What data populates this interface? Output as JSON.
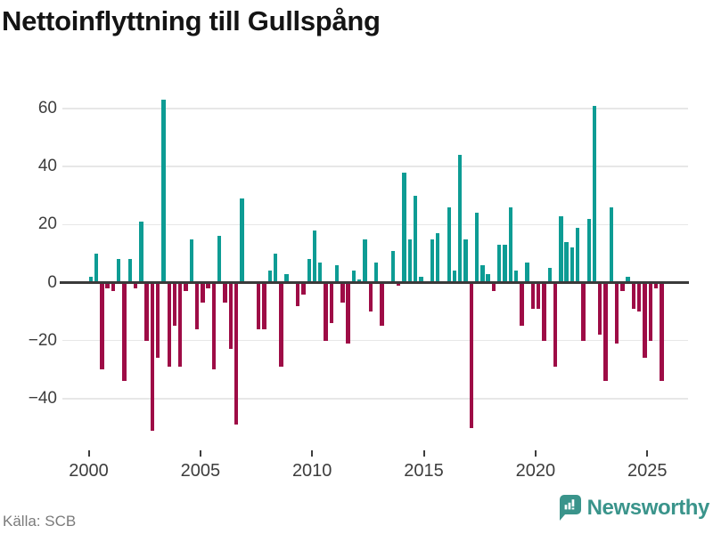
{
  "header": {
    "title": "Nettoinflyttning till Gullspång"
  },
  "footer": {
    "source": "Källa: SCB",
    "brand": "Newsworthy"
  },
  "colors": {
    "positive": "#0d9c94",
    "negative": "#9e0c46",
    "axis": "#3a3a3a",
    "grid": "#e7e7e7",
    "brand_teal": "#3a948b"
  },
  "chart_data": {
    "type": "bar",
    "title": "Nettoinflyttning till Gullspång",
    "xlabel": "",
    "ylabel": "",
    "x_unit": "quarter",
    "start_period": "2000-Q1",
    "end_period": "2025-Q3",
    "values": [
      2,
      10,
      -30,
      -2,
      -3,
      8,
      -34,
      8,
      -2,
      21,
      -20,
      -51,
      -26,
      63,
      -29,
      -15,
      -29,
      -3,
      15,
      -16,
      -7,
      -2,
      -30,
      16,
      -7,
      -23,
      -49,
      29,
      0,
      0,
      -16,
      -16,
      4,
      10,
      -29,
      3,
      0,
      -8,
      -4,
      8,
      18,
      7,
      -20,
      -14,
      6,
      -7,
      -21,
      4,
      1,
      15,
      -10,
      7,
      -15,
      0,
      11,
      -1,
      38,
      15,
      30,
      2,
      0,
      15,
      17,
      0,
      26,
      4,
      44,
      15,
      -50,
      24,
      6,
      3,
      -3,
      13,
      13,
      26,
      4,
      -15,
      7,
      -9,
      -9,
      -20,
      5,
      -29,
      23,
      14,
      12,
      19,
      -20,
      22,
      61,
      -18,
      -34,
      26,
      -21,
      -3,
      2,
      -9,
      -10,
      -26,
      -20,
      -2,
      -34
    ],
    "x_tick_years": [
      2000,
      2005,
      2010,
      2015,
      2020,
      2025
    ],
    "y_ticks": [
      60,
      40,
      20,
      0,
      -20,
      -40
    ],
    "ylim": [
      -55,
      68
    ],
    "grid": "horizontal-only",
    "legend": "none",
    "positive_color": "#0d9c94",
    "negative_color": "#9e0c46"
  }
}
